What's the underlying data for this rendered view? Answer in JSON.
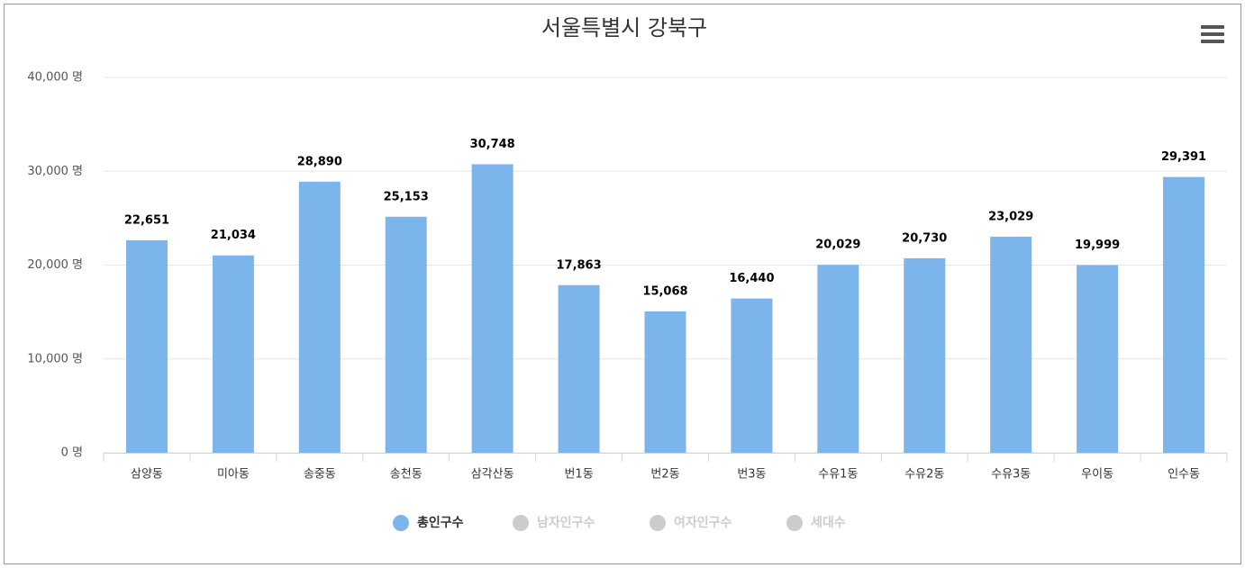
{
  "chart_data": {
    "type": "bar",
    "title": "서울특별시 강북구",
    "categories": [
      "삼양동",
      "미아동",
      "송중동",
      "송천동",
      "삼각산동",
      "번1동",
      "번2동",
      "번3동",
      "수유1동",
      "수유2동",
      "수유3동",
      "우이동",
      "인수동"
    ],
    "series": [
      {
        "name": "총인구수",
        "color": "#7cb5ec",
        "visible": true,
        "values": [
          22651,
          21034,
          28890,
          25153,
          30748,
          17863,
          15068,
          16440,
          20029,
          20730,
          23029,
          19999,
          29391
        ],
        "value_labels": [
          "22,651",
          "21,034",
          "28,890",
          "25,153",
          "30,748",
          "17,863",
          "15,068",
          "16,440",
          "20,029",
          "20,730",
          "23,029",
          "19,999",
          "29,391"
        ]
      },
      {
        "name": "남자인구수",
        "color": "#cccccc",
        "visible": false
      },
      {
        "name": "여자인구수",
        "color": "#cccccc",
        "visible": false
      },
      {
        "name": "세대수",
        "color": "#cccccc",
        "visible": false
      }
    ],
    "ylim": [
      0,
      40000
    ],
    "yticks": [
      {
        "value": 0,
        "label": "0 명"
      },
      {
        "value": 10000,
        "label": "10,000 명"
      },
      {
        "value": 20000,
        "label": "20,000 명"
      },
      {
        "value": 30000,
        "label": "30,000 명"
      },
      {
        "value": 40000,
        "label": "40,000 명"
      }
    ],
    "grid": true
  }
}
